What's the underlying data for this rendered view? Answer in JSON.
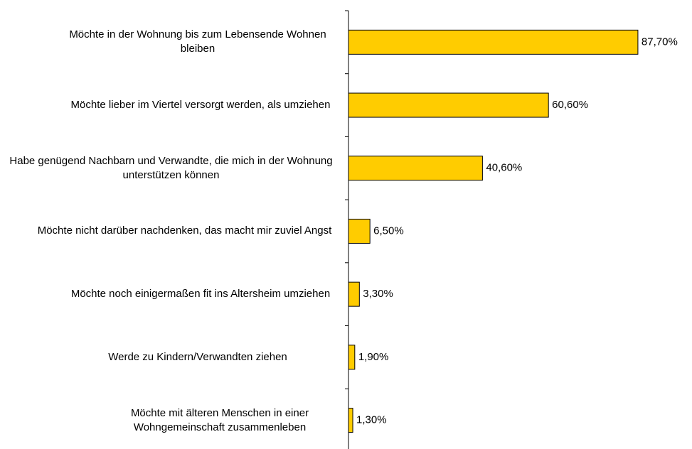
{
  "chart_data": {
    "type": "barh",
    "categories": [
      "Möchte in der Wohnung bis zum Lebensende Wohnen bleiben",
      "Möchte lieber im Viertel versorgt werden, als umziehen",
      "Habe genügend Nachbarn und Verwandte, die mich in der Wohnung unterstützen können",
      "Möchte nicht darüber nachdenken, das macht mir zuviel Angst",
      "Möchte noch einigermaßen fit ins Altersheim umziehen",
      "Werde zu Kindern/Verwandten ziehen",
      "Möchte mit älteren Menschen in einer Wohngemeinschaft zusammenleben"
    ],
    "values": [
      87.7,
      60.6,
      40.6,
      6.5,
      3.3,
      1.9,
      1.3
    ],
    "value_labels": [
      "87,70%",
      "60,60%",
      "40,60%",
      "6,50%",
      "3,30%",
      "1,90%",
      "1,30%"
    ],
    "color": "#ffcc00",
    "xlim": [
      0,
      100
    ]
  }
}
